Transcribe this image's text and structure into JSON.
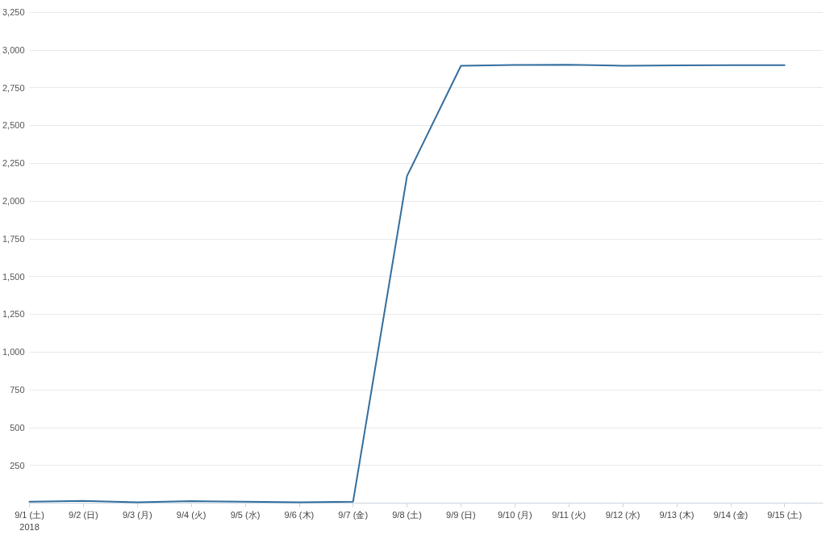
{
  "chart_data": {
    "type": "line",
    "x": [
      "2018-09-01",
      "2018-09-02",
      "2018-09-03",
      "2018-09-04",
      "2018-09-05",
      "2018-09-06",
      "2018-09-07",
      "2018-09-08",
      "2018-09-09",
      "2018-09-10",
      "2018-09-11",
      "2018-09-12",
      "2018-09-13",
      "2018-09-14",
      "2018-09-15"
    ],
    "xlim": [
      "2018-09-01",
      "2018-09-15T17:00"
    ],
    "xticks": [
      {
        "value": "2018-09-01",
        "label": "9/1 (土)"
      },
      {
        "value": "2018-09-02",
        "label": "9/2 (日)"
      },
      {
        "value": "2018-09-03",
        "label": "9/3 (月)"
      },
      {
        "value": "2018-09-04",
        "label": "9/4 (火)"
      },
      {
        "value": "2018-09-05",
        "label": "9/5 (水)"
      },
      {
        "value": "2018-09-06",
        "label": "9/6 (木)"
      },
      {
        "value": "2018-09-07",
        "label": "9/7 (金)"
      },
      {
        "value": "2018-09-08",
        "label": "9/8 (土)"
      },
      {
        "value": "2018-09-09",
        "label": "9/9 (日)"
      },
      {
        "value": "2018-09-10",
        "label": "9/10 (月)"
      },
      {
        "value": "2018-09-11",
        "label": "9/11 (火)"
      },
      {
        "value": "2018-09-12",
        "label": "9/12 (水)"
      },
      {
        "value": "2018-09-13",
        "label": "9/13 (木)"
      },
      {
        "value": "2018-09-14",
        "label": "9/14 (金)"
      },
      {
        "value": "2018-09-15",
        "label": "9/15 (土)"
      }
    ],
    "ylim": [
      0,
      3250
    ],
    "yticks": [
      250,
      500,
      750,
      {
        "value": 1000,
        "label": "1,000"
      },
      {
        "value": 1250,
        "label": "1,250"
      },
      {
        "value": 1500,
        "label": "1,500"
      },
      {
        "value": 1750,
        "label": "1,750"
      },
      {
        "value": 2000,
        "label": "2,000"
      },
      {
        "value": 2250,
        "label": "2,250"
      },
      {
        "value": 2500,
        "label": "2,500"
      },
      {
        "value": 2750,
        "label": "2,750"
      },
      {
        "value": 3000,
        "label": "3,000"
      },
      {
        "value": 3250,
        "label": "3,250"
      }
    ],
    "series": [
      {
        "color": "#336e9e",
        "values": [
          10,
          15,
          5,
          13,
          10,
          5,
          10,
          2165,
          2895,
          2900,
          2902,
          2895,
          2897,
          2899,
          2899
        ]
      }
    ],
    "grid": "y",
    "marker": "none",
    "line_style": "solid",
    "annotations": [
      "2018"
    ]
  }
}
